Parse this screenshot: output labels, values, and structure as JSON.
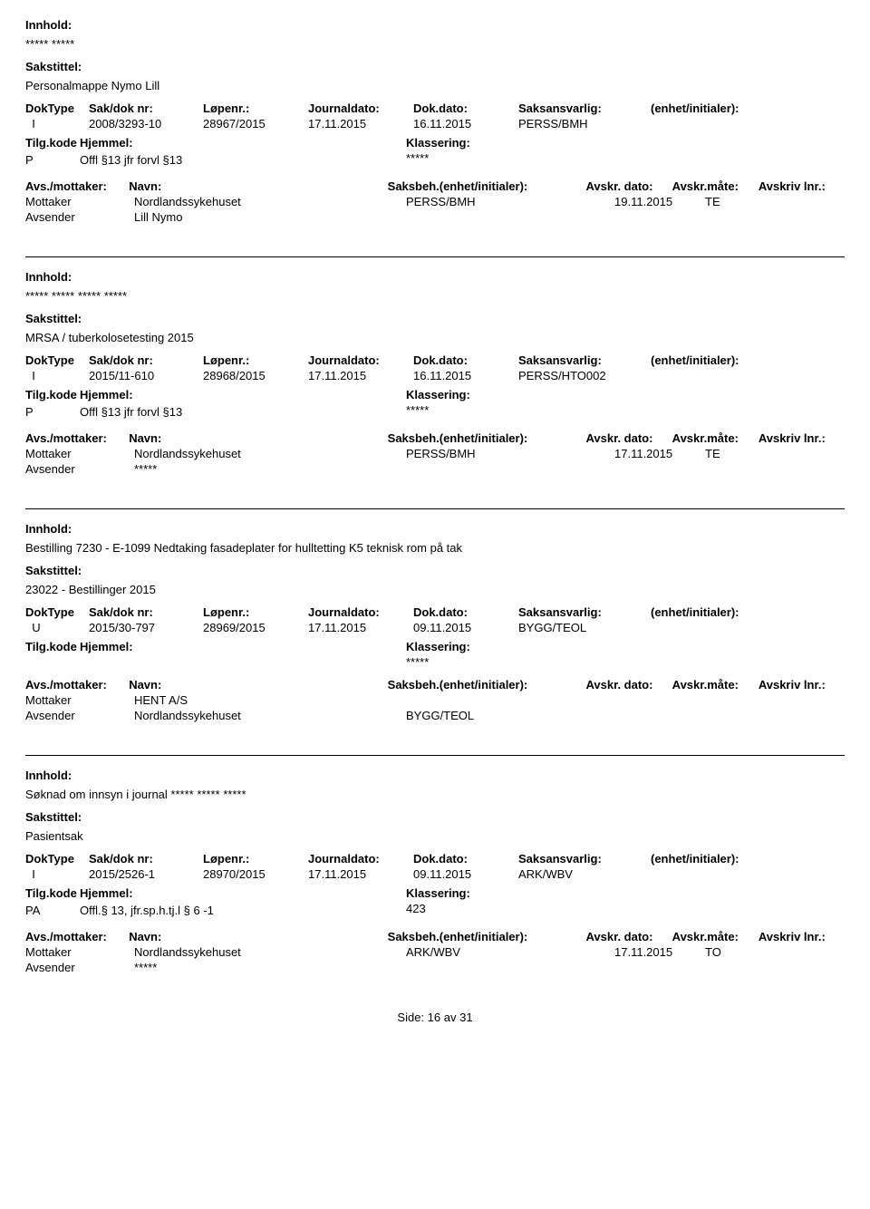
{
  "labels": {
    "innhold": "Innhold:",
    "sakstittel": "Sakstittel:",
    "doktype": "DokType",
    "sakdoknr": "Sak/dok nr:",
    "lopenr": "Løpenr.:",
    "journaldato": "Journaldato:",
    "dokdato": "Dok.dato:",
    "saksansvarlig": "Saksansvarlig:",
    "enhet": "(enhet/initialer):",
    "tilgkode": "Tilg.kode",
    "hjemmel": "Hjemmel:",
    "klassering": "Klassering:",
    "avsmottaker": "Avs./mottaker:",
    "navn": "Navn:",
    "saksbeh": "Saksbeh.(enhet/initialer):",
    "avskrdato": "Avskr. dato:",
    "avskrmate": "Avskr.måte:",
    "avskrivlnr": "Avskriv lnr.:",
    "mottaker": "Mottaker",
    "avsender": "Avsender"
  },
  "footer": {
    "side": "Side:",
    "page": "16",
    "av": "av",
    "total": "31"
  },
  "records": [
    {
      "innhold": "***** *****",
      "sakstittel": "Personalmappe Nymo Lill",
      "doktype": "I",
      "sakdoknr": "2008/3293-10",
      "lopenr": "28967/2015",
      "journaldato": "17.11.2015",
      "dokdato": "16.11.2015",
      "saksansvarlig": "PERSS/BMH",
      "tilgkode": "P",
      "hjemmel": "Offl §13 jfr forvl §13",
      "klassering": "*****",
      "parties": [
        {
          "role": "Mottaker",
          "navn": "Nordlandssykehuset",
          "saksbeh": "PERSS/BMH",
          "avskrdato": "19.11.2015",
          "avskrmate": "TE"
        },
        {
          "role": "Avsender",
          "navn": "Lill Nymo",
          "saksbeh": "",
          "avskrdato": "",
          "avskrmate": ""
        }
      ]
    },
    {
      "innhold": "***** ***** ***** *****",
      "sakstittel": "MRSA / tuberkolosetesting 2015",
      "doktype": "I",
      "sakdoknr": "2015/11-610",
      "lopenr": "28968/2015",
      "journaldato": "17.11.2015",
      "dokdato": "16.11.2015",
      "saksansvarlig": "PERSS/HTO002",
      "tilgkode": "P",
      "hjemmel": "Offl §13 jfr forvl §13",
      "klassering": "*****",
      "parties": [
        {
          "role": "Mottaker",
          "navn": "Nordlandssykehuset",
          "saksbeh": "PERSS/BMH",
          "avskrdato": "17.11.2015",
          "avskrmate": "TE"
        },
        {
          "role": "Avsender",
          "navn": "*****",
          "saksbeh": "",
          "avskrdato": "",
          "avskrmate": ""
        }
      ]
    },
    {
      "innhold": "Bestilling 7230 - E-1099 Nedtaking fasadeplater for hulltetting K5 teknisk rom på tak",
      "sakstittel": "23022 - Bestillinger 2015",
      "doktype": "U",
      "sakdoknr": "2015/30-797",
      "lopenr": "28969/2015",
      "journaldato": "17.11.2015",
      "dokdato": "09.11.2015",
      "saksansvarlig": "BYGG/TEOL",
      "tilgkode": "",
      "hjemmel": "",
      "klassering": "*****",
      "parties": [
        {
          "role": "Mottaker",
          "navn": "HENT A/S",
          "saksbeh": "",
          "avskrdato": "",
          "avskrmate": ""
        },
        {
          "role": "Avsender",
          "navn": "Nordlandssykehuset",
          "saksbeh": "BYGG/TEOL",
          "avskrdato": "",
          "avskrmate": ""
        }
      ]
    },
    {
      "innhold": "Søknad om innsyn i journal ***** ***** *****",
      "sakstittel": "Pasientsak",
      "doktype": "I",
      "sakdoknr": "2015/2526-1",
      "lopenr": "28970/2015",
      "journaldato": "17.11.2015",
      "dokdato": "09.11.2015",
      "saksansvarlig": "ARK/WBV",
      "tilgkode": "PA",
      "hjemmel": "Offl.§ 13, jfr.sp.h.tj.l § 6 -1",
      "klassering": "423",
      "parties": [
        {
          "role": "Mottaker",
          "navn": "Nordlandssykehuset",
          "saksbeh": "ARK/WBV",
          "avskrdato": "17.11.2015",
          "avskrmate": "TO"
        },
        {
          "role": "Avsender",
          "navn": "*****",
          "saksbeh": "",
          "avskrdato": "",
          "avskrmate": ""
        }
      ]
    }
  ]
}
